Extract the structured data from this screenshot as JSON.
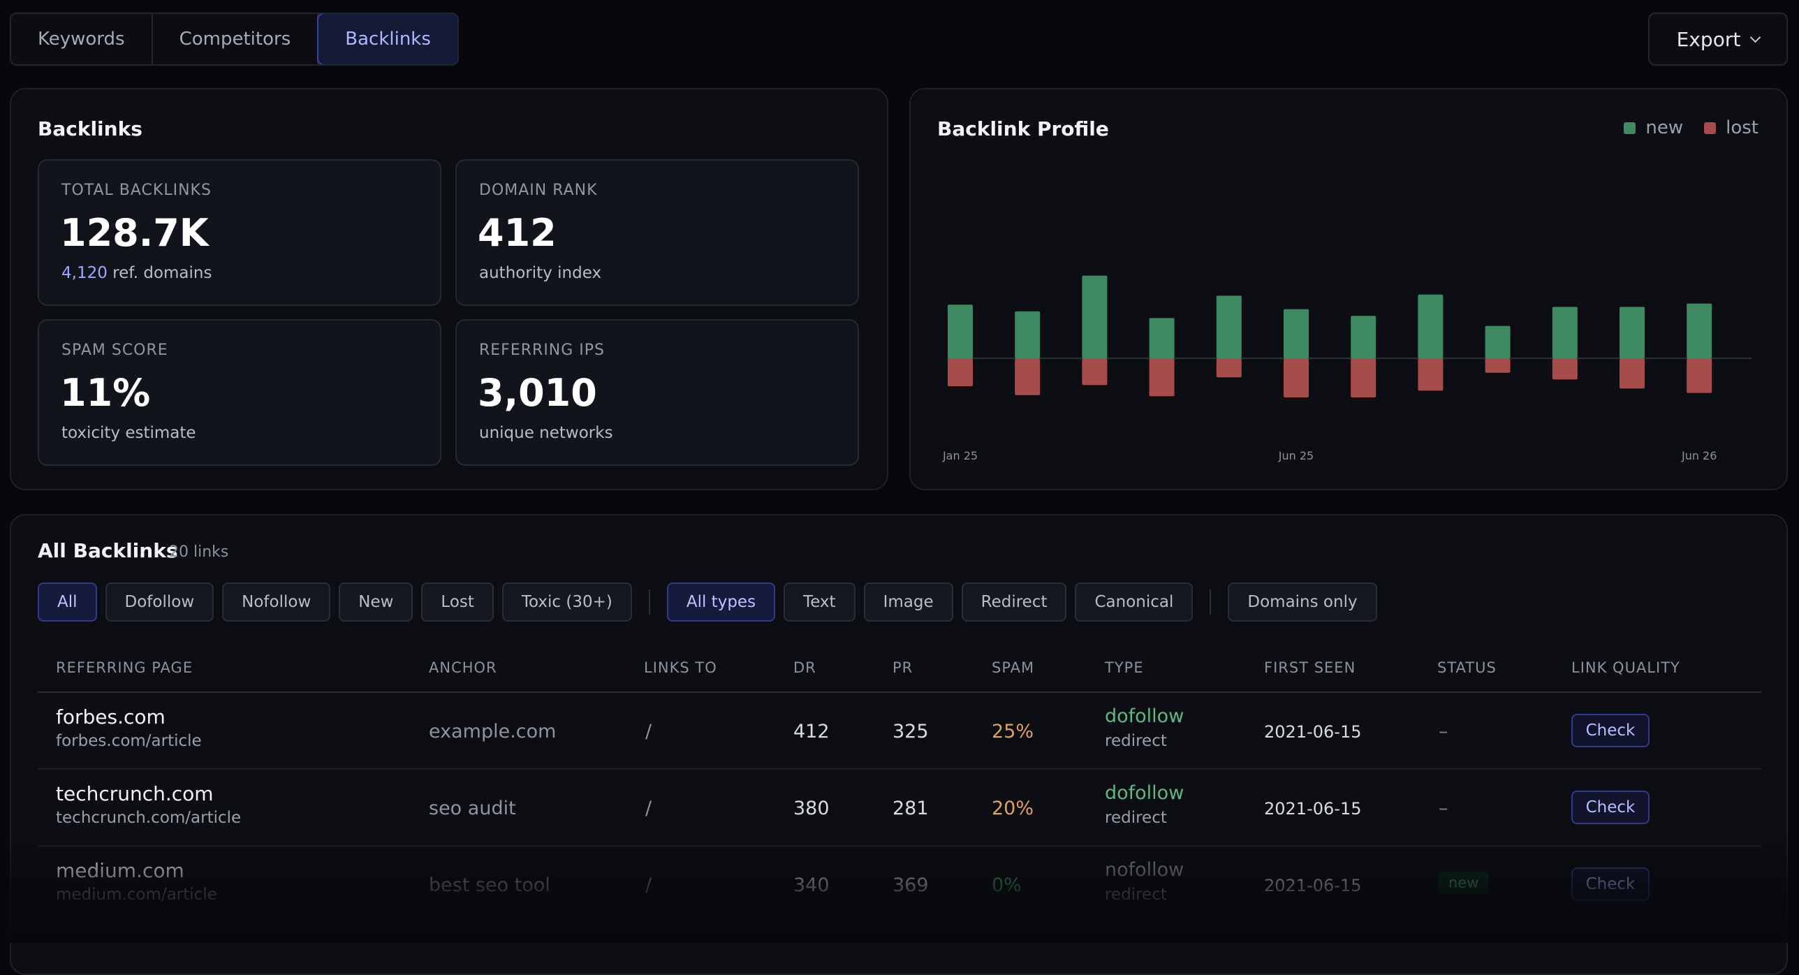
{
  "tabs": [
    {
      "label": "Keywords",
      "active": false
    },
    {
      "label": "Competitors",
      "active": false
    },
    {
      "label": "Backlinks",
      "active": true
    }
  ],
  "export_label": "Export",
  "backlinks_panel": {
    "title": "Backlinks",
    "metrics": [
      {
        "label": "TOTAL BACKLINKS",
        "value": "128.7K",
        "sub_accent": "4,120",
        "sub": " ref. domains"
      },
      {
        "label": "DOMAIN RANK",
        "value": "412",
        "sub_accent": "",
        "sub": "authority index"
      },
      {
        "label": "SPAM SCORE",
        "value": "11%",
        "sub_accent": "",
        "sub": "toxicity estimate"
      },
      {
        "label": "REFERRING IPS",
        "value": "3,010",
        "sub_accent": "",
        "sub": "unique networks"
      }
    ]
  },
  "profile_panel": {
    "title": "Backlink Profile",
    "legend": [
      {
        "label": "new",
        "color": "#3f8a63"
      },
      {
        "label": "lost",
        "color": "#a84b4b"
      }
    ]
  },
  "chart_data": {
    "type": "bar",
    "title": "Backlink Profile",
    "x_tick_labels": [
      "Jan 25",
      "Jun 25",
      "Jun 26"
    ],
    "series": [
      {
        "name": "new",
        "color": "#3f8a63",
        "values": [
          48,
          42,
          74,
          36,
          56,
          44,
          38,
          57,
          29,
          46,
          46,
          49
        ]
      },
      {
        "name": "lost",
        "color": "#a84b4b",
        "values": [
          -25,
          -33,
          -24,
          -34,
          -17,
          -35,
          -35,
          -29,
          -13,
          -19,
          -27,
          -31
        ]
      }
    ]
  },
  "table": {
    "title": "All Backlinks",
    "count": "20 links",
    "filters_a": [
      {
        "label": "All",
        "active": true
      },
      {
        "label": "Dofollow",
        "active": false
      },
      {
        "label": "Nofollow",
        "active": false
      },
      {
        "label": "New",
        "active": false
      },
      {
        "label": "Lost",
        "active": false
      },
      {
        "label": "Toxic (30+)",
        "active": false
      }
    ],
    "filters_b": [
      {
        "label": "All types",
        "active": true
      },
      {
        "label": "Text",
        "active": false
      },
      {
        "label": "Image",
        "active": false
      },
      {
        "label": "Redirect",
        "active": false
      },
      {
        "label": "Canonical",
        "active": false
      }
    ],
    "filters_c": [
      {
        "label": "Domains only",
        "active": false
      }
    ],
    "columns": [
      "REFERRING PAGE",
      "ANCHOR",
      "LINKS TO",
      "DR",
      "PR",
      "SPAM",
      "TYPE",
      "FIRST SEEN",
      "STATUS",
      "LINK QUALITY"
    ],
    "rows": [
      {
        "domain": "forbes.com",
        "url": "forbes.com/article",
        "anchor": "example.com",
        "links_to": "/",
        "dr": "412",
        "pr": "325",
        "spam": "25%",
        "spam_color": "#e0a25b",
        "type": "dofollow",
        "type_color": "#5fb883",
        "subtype": "redirect",
        "first_seen": "2021-06-15",
        "status": "–",
        "status_badge": false,
        "action": "Check"
      },
      {
        "domain": "techcrunch.com",
        "url": "techcrunch.com/article",
        "anchor": "seo audit",
        "links_to": "/",
        "dr": "380",
        "pr": "281",
        "spam": "20%",
        "spam_color": "#e0a25b",
        "type": "dofollow",
        "type_color": "#5fb883",
        "subtype": "redirect",
        "first_seen": "2021-06-15",
        "status": "–",
        "status_badge": false,
        "action": "Check"
      },
      {
        "domain": "medium.com",
        "url": "medium.com/article",
        "anchor": "best seo tool",
        "links_to": "/",
        "dr": "340",
        "pr": "369",
        "spam": "0%",
        "spam_color": "#4fae74",
        "type": "nofollow",
        "type_color": "#8c919c",
        "subtype": "redirect",
        "first_seen": "2021-06-15",
        "status": "new",
        "status_badge": true,
        "action": "Check"
      }
    ]
  }
}
